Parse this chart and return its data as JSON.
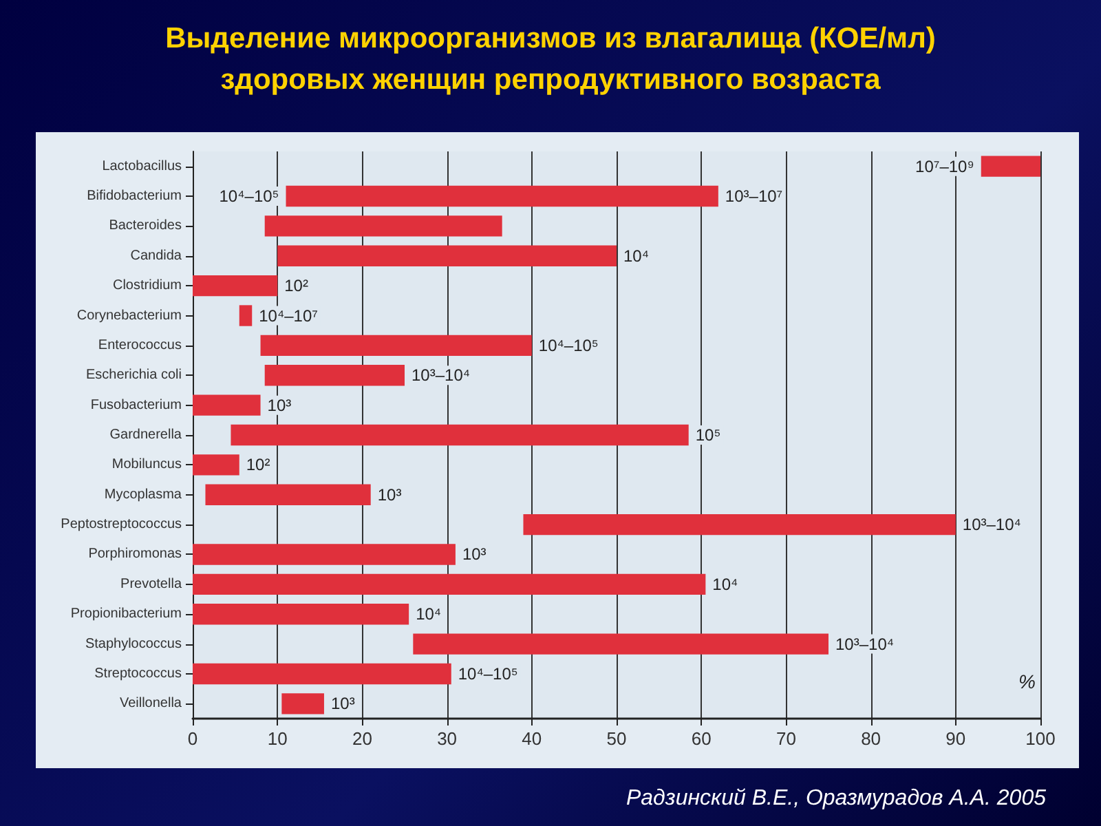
{
  "chart_data": {
    "type": "bar",
    "orientation": "horizontal",
    "title": "Выделение микроорганизмов из влагалища (КОЕ/мл)\nздоровых женщин репродуктивного возраста",
    "xlabel": "%",
    "categories": [
      "Lactobacillus",
      "Bifidobacterium",
      "Bacteroides",
      "Candida",
      "Clostridium",
      "Corynebacterium",
      "Enterococcus",
      "Escherichia coli",
      "Fusobacterium",
      "Gardnerella",
      "Mobiluncus",
      "Mycoplasma",
      "Peptostreptococcus",
      "Porphiromonas",
      "Prevotella",
      "Propionibacterium",
      "Staphylococcus",
      "Streptococcus",
      "Veillonella"
    ],
    "base": [
      93,
      11,
      8.5,
      10,
      0,
      5.5,
      8,
      8.5,
      0,
      4.5,
      0,
      1.5,
      39,
      0,
      0,
      0,
      26,
      0,
      10.5
    ],
    "values": [
      7,
      51,
      28,
      40,
      10,
      1.5,
      32,
      16.5,
      8,
      54,
      5.5,
      19.5,
      51,
      31,
      60.5,
      25.5,
      49,
      30.5,
      5
    ],
    "color": "#e0303c",
    "xlim": [
      0,
      100
    ],
    "xticks": [
      0,
      10,
      20,
      30,
      40,
      50,
      60,
      70,
      80,
      90,
      100
    ],
    "grid": "x",
    "annotations": [
      {
        "text": "10⁷–10⁹",
        "x": 93,
        "y": "Lactobacillus"
      },
      {
        "text": "10⁴–10⁵",
        "x": 11,
        "y": "Bifidobacterium"
      },
      {
        "text": "10³–10⁷",
        "x": 62,
        "y": "Bifidobacterium"
      },
      {
        "text": "10⁴",
        "x": 50,
        "y": "Candida"
      },
      {
        "text": "10²",
        "x": 10,
        "y": "Clostridium"
      },
      {
        "text": "10⁴–10⁷",
        "x": 7,
        "y": "Corynebacterium"
      },
      {
        "text": "10⁴–10⁵",
        "x": 40,
        "y": "Enterococcus"
      },
      {
        "text": "10³–10⁴",
        "x": 25,
        "y": "Escherichia coli"
      },
      {
        "text": "10³",
        "x": 8,
        "y": "Fusobacterium"
      },
      {
        "text": "10⁵",
        "x": 58.5,
        "y": "Gardnerella"
      },
      {
        "text": "10²",
        "x": 5.5,
        "y": "Mobiluncus"
      },
      {
        "text": "10³",
        "x": 21,
        "y": "Mycoplasma"
      },
      {
        "text": "10³–10⁴",
        "x": 90,
        "y": "Peptostreptococcus"
      },
      {
        "text": "10³",
        "x": 31,
        "y": "Porphiromonas"
      },
      {
        "text": "10⁴",
        "x": 60.5,
        "y": "Prevotella"
      },
      {
        "text": "10⁴",
        "x": 25.5,
        "y": "Propionibacterium"
      },
      {
        "text": "10³–10⁴",
        "x": 75,
        "y": "Staphylococcus"
      },
      {
        "text": "10⁴–10⁵",
        "x": 30.5,
        "y": "Streptococcus"
      },
      {
        "text": "10³",
        "x": 15.5,
        "y": "Veillonella"
      },
      "Радзинский В.Е., Оразмурадов А.А. 2005"
    ]
  }
}
